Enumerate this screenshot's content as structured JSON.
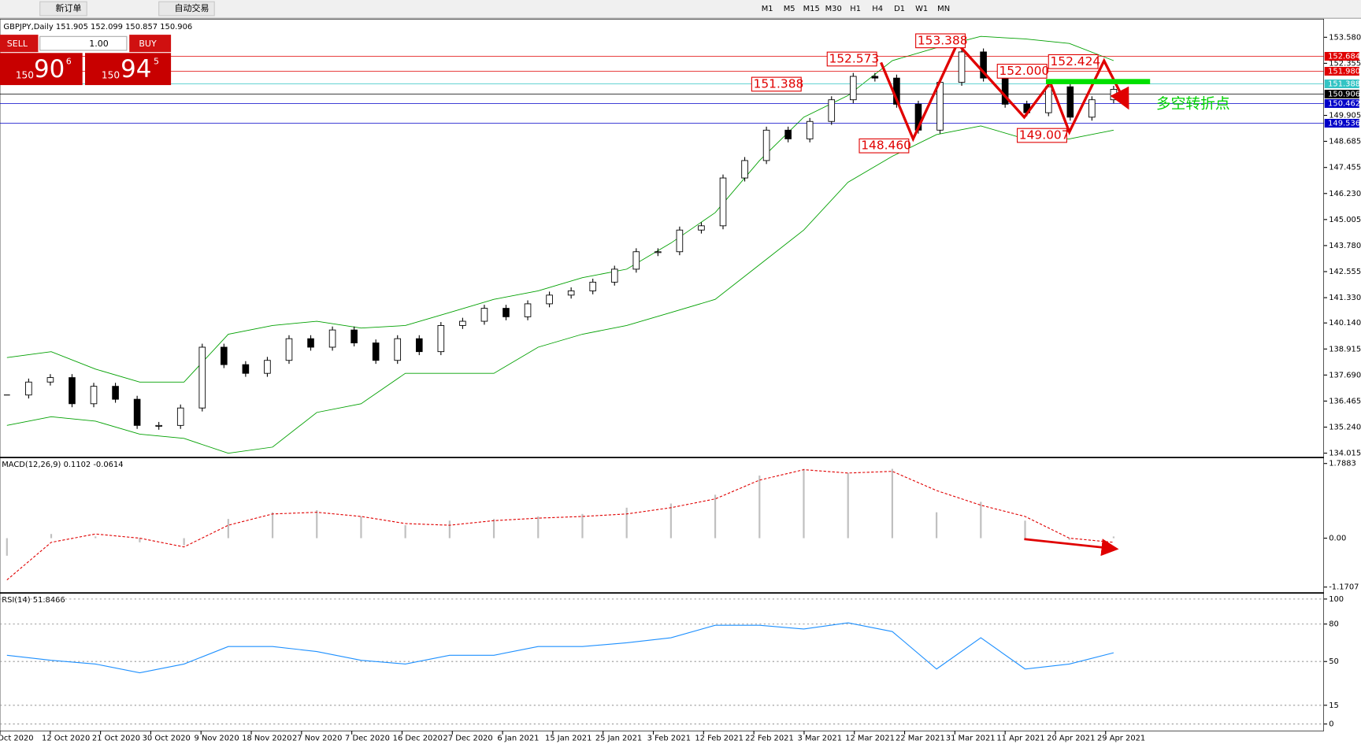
{
  "toolbar": {
    "buttons": [
      "新订单",
      "自动交易"
    ],
    "timeframes": [
      "M1",
      "M5",
      "M15",
      "M30",
      "H1",
      "H4",
      "D1",
      "W1",
      "MN"
    ]
  },
  "trade_panel": {
    "sell": "SELL",
    "lots": "1.00",
    "buy": "BUY",
    "bid": {
      "big": "150",
      "main": "90",
      "pip": "6"
    },
    "ask": {
      "big": "150",
      "main": "94",
      "pip": "5"
    }
  },
  "annotations": [
    "152.573",
    "153.388",
    "152.000",
    "152.424",
    "151.388",
    "148.460",
    "149.007",
    "多空转折点"
  ],
  "date_labels": [
    "Oct 2020",
    "12 Oct 2020",
    "21 Oct 2020",
    "30 Oct 2020",
    "9 Nov 2020",
    "18 Nov 2020",
    "27 Nov 2020",
    "7 Dec 2020",
    "16 Dec 2020",
    "27 Dec 2020",
    "6 Jan 2021",
    "15 Jan 2021",
    "25 Jan 2021",
    "3 Feb 2021",
    "12 Feb 2021",
    "22 Feb 2021",
    "3 Mar 2021",
    "12 Mar 2021",
    "22 Mar 2021",
    "31 Mar 2021",
    "11 Apr 2021",
    "20 Apr 2021",
    "29 Apr 2021"
  ],
  "chart_data": [
    {
      "type": "candlestick",
      "title": "GBPJPY,Daily  151.905 152.099 150.857 150.906",
      "values": [
        136.75,
        137.36,
        137.57,
        136.34,
        137.16,
        136.55,
        135.32,
        135.32,
        136.14,
        139.0,
        138.18,
        137.77,
        138.38,
        139.4,
        139.0,
        139.81,
        139.2,
        138.38,
        139.4,
        138.79,
        140.02,
        140.22,
        140.83,
        140.43,
        141.04,
        141.45,
        141.65,
        142.06,
        142.67,
        143.49,
        143.49,
        144.51,
        144.71,
        146.96,
        147.78,
        149.21,
        148.8,
        149.62,
        150.64,
        151.74,
        151.66,
        150.43,
        149.21,
        151.46,
        152.89,
        151.66,
        150.43,
        150.03,
        151.25,
        149.82,
        150.64,
        151.13
      ],
      "bands": {
        "color": "#00a000",
        "upper": [
          138.51,
          138.79,
          137.97,
          137.36,
          137.36,
          139.61,
          140.02,
          140.22,
          139.9,
          140.02,
          140.63,
          141.25,
          141.65,
          142.27,
          142.67,
          143.9,
          145.33,
          147.78,
          149.82,
          150.84,
          152.48,
          153.09,
          153.62,
          153.5,
          153.29,
          152.48
        ],
        "lower": [
          135.32,
          135.73,
          135.52,
          134.91,
          134.71,
          134.01,
          134.3,
          135.93,
          136.34,
          137.77,
          137.77,
          137.77,
          139.0,
          139.61,
          140.02,
          140.63,
          141.25,
          142.88,
          144.51,
          146.76,
          147.98,
          149.0,
          149.41,
          148.8,
          148.8,
          149.21
        ]
      },
      "ylim": [
        133.81,
        154.23
      ],
      "yticks": [
        {
          "value": 153.58,
          "label": "153.580"
        },
        {
          "value": 152.355,
          "label": "152.355"
        },
        {
          "value": 149.905,
          "label": "149.905"
        },
        {
          "value": 148.685,
          "label": "148.685"
        },
        {
          "value": 147.455,
          "label": "147.455"
        },
        {
          "value": 146.23,
          "label": "146.230"
        },
        {
          "value": 145.005,
          "label": "145.005"
        },
        {
          "value": 143.78,
          "label": "143.780"
        },
        {
          "value": 142.555,
          "label": "142.555"
        },
        {
          "value": 141.33,
          "label": "141.330"
        },
        {
          "value": 140.14,
          "label": "140.140"
        },
        {
          "value": 138.915,
          "label": "138.915"
        },
        {
          "value": 137.69,
          "label": "137.690"
        },
        {
          "value": 136.465,
          "label": "136.465"
        },
        {
          "value": 135.24,
          "label": "135.240"
        },
        {
          "value": 134.015,
          "label": "134.015"
        }
      ],
      "levels": [
        {
          "value": 152.684,
          "label": "152.684",
          "color": "#e00000"
        },
        {
          "value": 151.98,
          "label": "151.980",
          "color": "#e00000"
        },
        {
          "value": 151.388,
          "label": "151.388",
          "color": "#33c4c4"
        },
        {
          "value": 150.906,
          "label": "150.906",
          "color": "#000000"
        },
        {
          "value": 150.462,
          "label": "150.462",
          "color": "#0000c8"
        },
        {
          "value": 149.536,
          "label": "149.536",
          "color": "#0000c8"
        }
      ]
    },
    {
      "type": "bar",
      "title": "MACD(12,26,9) 0.1102 -0.0614",
      "color": "#c0c0c0",
      "signal_color": "#e00000",
      "values": [
        -0.42,
        0.1,
        0.04,
        -0.1,
        -0.17,
        0.46,
        0.62,
        0.67,
        0.52,
        0.31,
        0.42,
        0.46,
        0.52,
        0.58,
        0.73,
        0.83,
        1.04,
        1.5,
        1.66,
        1.56,
        1.66,
        0.62,
        0.87,
        0.42,
        -0.04,
        0.04
      ],
      "signal": [
        -1.0,
        -0.1,
        0.1,
        0,
        -0.21,
        0.31,
        0.58,
        0.62,
        0.52,
        0.35,
        0.31,
        0.42,
        0.48,
        0.52,
        0.58,
        0.73,
        0.94,
        1.39,
        1.64,
        1.56,
        1.6,
        1.14,
        0.79,
        0.52,
        0,
        -0.1
      ],
      "ylim": [
        -1.27,
        1.89
      ],
      "yticks": [
        1.7883,
        {
          "value": 0,
          "label": "0.00"
        },
        -1.1707
      ]
    },
    {
      "type": "line",
      "title": "RSI(14) 51.8466",
      "color": "#1e90ff",
      "values": [
        55,
        51,
        48,
        41,
        48,
        62,
        62,
        58,
        51,
        48,
        55,
        55,
        62,
        62,
        65,
        69,
        79,
        79,
        76,
        81,
        74,
        44,
        69,
        44,
        48,
        57
      ],
      "ylim": [
        -4.2,
        102.8
      ],
      "yticks": [
        100,
        80,
        50,
        15,
        0
      ],
      "grid": true
    }
  ]
}
